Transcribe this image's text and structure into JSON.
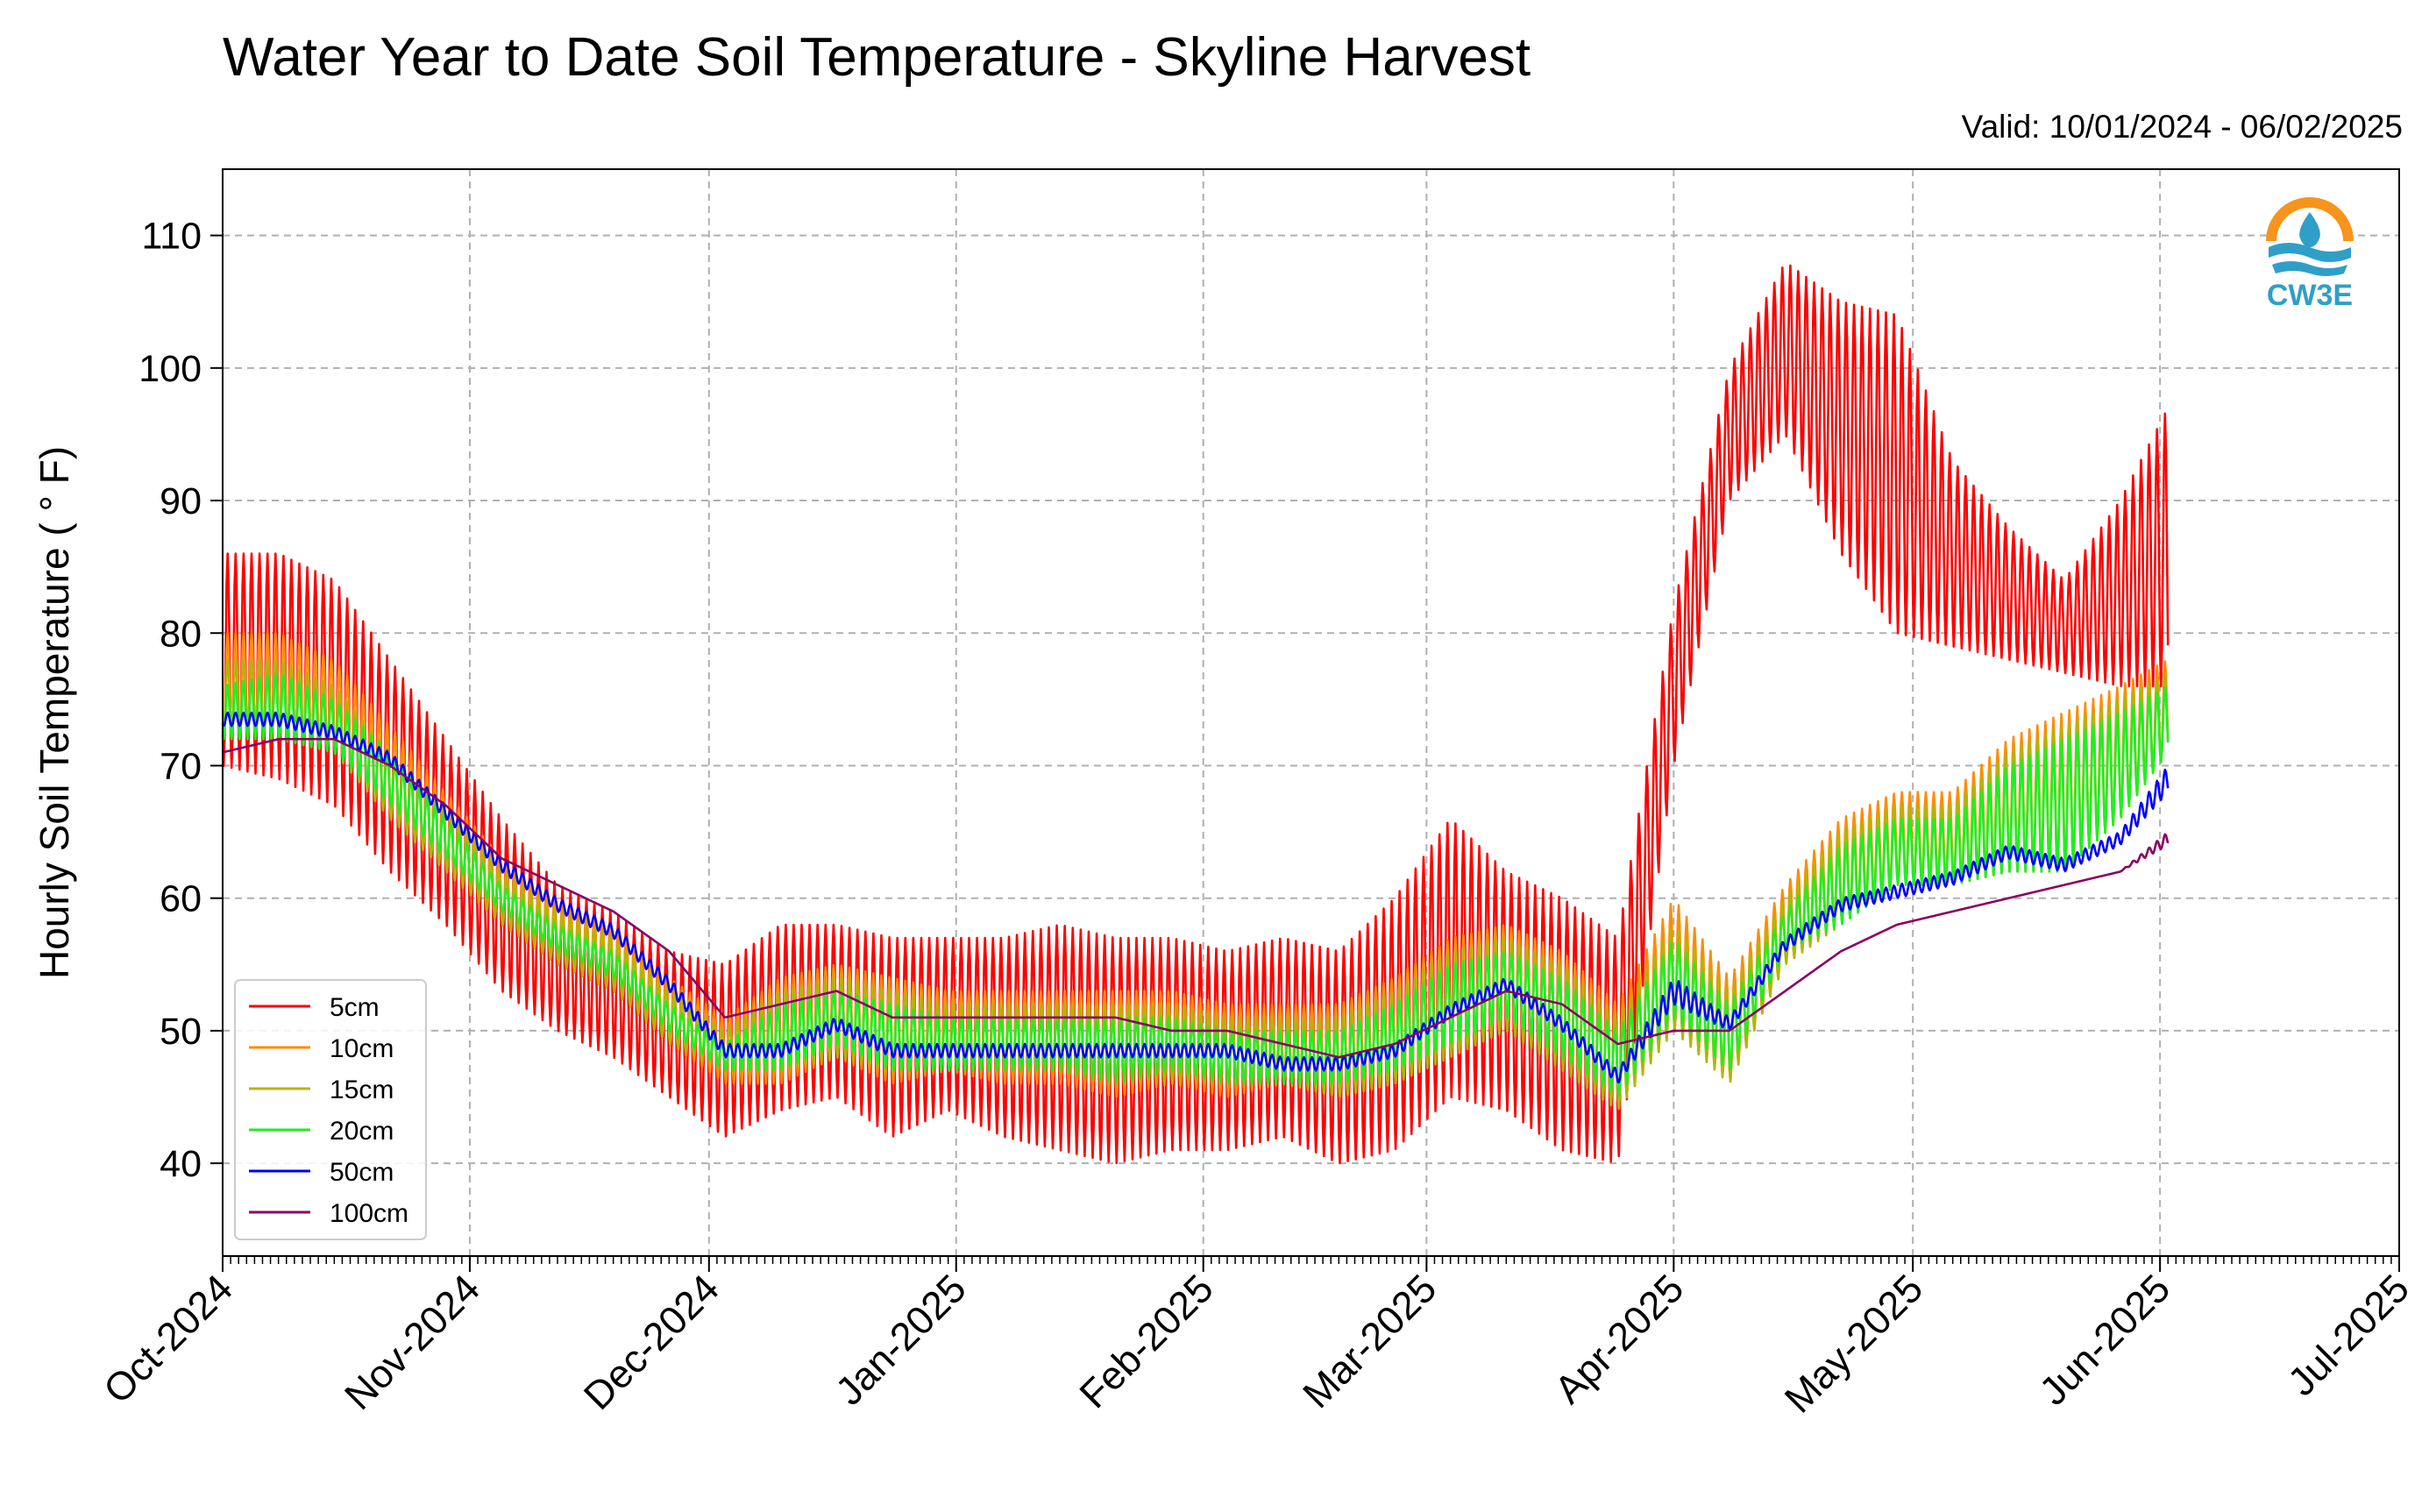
{
  "chart_data": {
    "type": "line",
    "title": "Water Year to Date Soil Temperature - Skyline Harvest",
    "subtitle": "Valid: 10/01/2024 - 06/02/2025",
    "ylabel": "Hourly Soil Temperature ( ° F)",
    "xlabel": "",
    "xlim": [
      "2024-10-01",
      "2025-07-01"
    ],
    "ylim": [
      33,
      115
    ],
    "yticks": [
      40,
      50,
      60,
      70,
      80,
      90,
      100,
      110
    ],
    "xticks": [
      {
        "date": "2024-10-01",
        "label": "Oct-2024"
      },
      {
        "date": "2024-11-01",
        "label": "Nov-2024"
      },
      {
        "date": "2024-12-01",
        "label": "Dec-2024"
      },
      {
        "date": "2025-01-01",
        "label": "Jan-2025"
      },
      {
        "date": "2025-02-01",
        "label": "Feb-2025"
      },
      {
        "date": "2025-03-01",
        "label": "Mar-2025"
      },
      {
        "date": "2025-04-01",
        "label": "Apr-2025"
      },
      {
        "date": "2025-05-01",
        "label": "May-2025"
      },
      {
        "date": "2025-06-01",
        "label": "Jun-2025"
      },
      {
        "date": "2025-07-01",
        "label": "Jul-2025"
      }
    ],
    "grid": true,
    "legend_position": "bottom-left",
    "x": [
      "2024-10-01",
      "2024-10-08",
      "2024-10-15",
      "2024-10-22",
      "2024-10-29",
      "2024-11-05",
      "2024-11-12",
      "2024-11-19",
      "2024-11-26",
      "2024-12-03",
      "2024-12-10",
      "2024-12-17",
      "2024-12-24",
      "2024-12-31",
      "2025-01-07",
      "2025-01-14",
      "2025-01-21",
      "2025-01-28",
      "2025-02-04",
      "2025-02-11",
      "2025-02-18",
      "2025-02-25",
      "2025-03-04",
      "2025-03-11",
      "2025-03-18",
      "2025-03-25",
      "2025-04-01",
      "2025-04-08",
      "2025-04-15",
      "2025-04-22",
      "2025-04-29",
      "2025-05-06",
      "2025-05-13",
      "2025-05-20",
      "2025-05-27",
      "2025-06-02"
    ],
    "series": [
      {
        "name": "5cm",
        "color": "#ff0000",
        "low": [
          70,
          69,
          67,
          62,
          58,
          53,
          50,
          48,
          45,
          42,
          44,
          45,
          42,
          44,
          42,
          41,
          40,
          41,
          41,
          42,
          40,
          41,
          45,
          44,
          41,
          40,
          70,
          90,
          95,
          86,
          80,
          79,
          78,
          77,
          76,
          76
        ],
        "high": [
          86,
          86,
          84,
          78,
          72,
          66,
          61,
          59,
          56,
          55,
          58,
          58,
          57,
          57,
          57,
          58,
          57,
          57,
          56,
          57,
          56,
          60,
          66,
          62,
          60,
          57,
          82,
          100,
          108,
          105,
          104,
          93,
          88,
          84,
          90,
          97
        ]
      },
      {
        "name": "10cm",
        "color": "#ff8c00",
        "low": [
          72,
          72,
          71,
          66,
          62,
          58,
          55,
          53,
          49,
          46,
          46,
          48,
          46,
          47,
          46,
          46,
          45,
          46,
          45,
          46,
          45,
          46,
          48,
          50,
          47,
          44,
          50,
          46,
          55,
          58,
          61,
          61,
          62,
          62,
          66,
          71
        ],
        "high": [
          80,
          80,
          78,
          73,
          68,
          63,
          60,
          58,
          54,
          51,
          54,
          55,
          54,
          53,
          53,
          53,
          53,
          53,
          52,
          52,
          52,
          54,
          57,
          58,
          56,
          52,
          60,
          54,
          61,
          66,
          68,
          68,
          72,
          74,
          76,
          78
        ]
      },
      {
        "name": "15cm",
        "color": "#b5b500",
        "low": [
          72,
          72,
          71,
          66,
          62,
          58,
          55,
          53,
          49,
          47,
          47,
          48,
          47,
          47,
          47,
          47,
          46,
          46,
          46,
          46,
          45,
          46,
          48,
          50,
          47,
          44,
          50,
          46,
          55,
          58,
          61,
          61,
          62,
          62,
          66,
          71
        ],
        "high": [
          78,
          78,
          76,
          71,
          67,
          62,
          59,
          57,
          53,
          50,
          53,
          54,
          53,
          52,
          52,
          52,
          52,
          52,
          51,
          51,
          51,
          53,
          56,
          57,
          55,
          51,
          58,
          53,
          60,
          65,
          67,
          67,
          71,
          73,
          75,
          77
        ]
      },
      {
        "name": "20cm",
        "color": "#22ee22",
        "low": [
          72,
          72,
          71,
          67,
          63,
          59,
          56,
          54,
          50,
          47,
          47,
          49,
          47,
          47,
          47,
          47,
          46,
          47,
          46,
          46,
          46,
          47,
          49,
          51,
          48,
          45,
          51,
          47,
          56,
          58,
          61,
          61,
          62,
          62,
          66,
          71
        ],
        "high": [
          76,
          77,
          75,
          71,
          66,
          61,
          58,
          56,
          52,
          49,
          52,
          53,
          52,
          51,
          51,
          51,
          51,
          51,
          50,
          50,
          50,
          52,
          55,
          56,
          54,
          50,
          57,
          52,
          59,
          64,
          66,
          66,
          70,
          72,
          74,
          76
        ]
      },
      {
        "name": "50cm",
        "color": "#0000ff",
        "low": [
          73,
          73,
          72,
          70,
          66,
          62,
          59,
          57,
          53,
          48,
          48,
          50,
          48,
          48,
          48,
          48,
          48,
          48,
          48,
          47,
          47,
          48,
          51,
          53,
          50,
          46,
          52,
          50,
          56,
          59,
          60,
          61,
          63,
          62,
          64,
          68
        ],
        "high": [
          74,
          74,
          73,
          71,
          67,
          63,
          60,
          58,
          54,
          49,
          49,
          51,
          49,
          49,
          49,
          49,
          49,
          49,
          49,
          48,
          48,
          49,
          52,
          54,
          51,
          47,
          54,
          51,
          57,
          60,
          61,
          62,
          64,
          63,
          65,
          70
        ]
      },
      {
        "name": "100cm",
        "color": "#8b0063",
        "low": [
          71,
          72,
          72,
          70,
          67,
          63,
          61,
          59,
          56,
          51,
          52,
          53,
          51,
          51,
          51,
          51,
          51,
          50,
          50,
          49,
          48,
          49,
          51,
          53,
          52,
          49,
          50,
          50,
          53,
          56,
          58,
          59,
          60,
          61,
          62,
          64
        ],
        "high": [
          71,
          72,
          72,
          70,
          67,
          63,
          61,
          59,
          56,
          51,
          52,
          53,
          51,
          51,
          51,
          51,
          51,
          50,
          50,
          49,
          48,
          49,
          51,
          53,
          52,
          49,
          50,
          50,
          53,
          56,
          58,
          59,
          60,
          61,
          62,
          65
        ]
      }
    ]
  },
  "logo": {
    "text": "CW3E",
    "colors": {
      "sun": "#f7941d",
      "water": "#2f9fc7"
    }
  }
}
